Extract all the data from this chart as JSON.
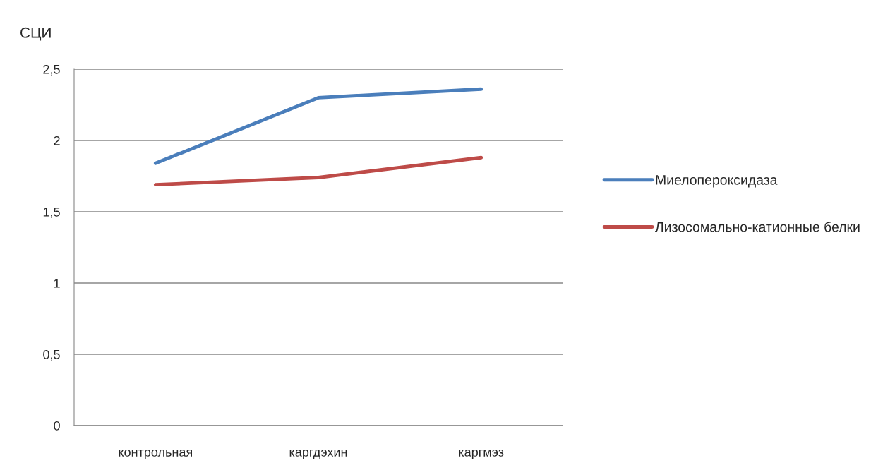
{
  "chart_data": {
    "type": "line",
    "ylabel": "СЦИ",
    "categories": [
      "контрольная",
      "каргдэхин",
      "каргмэз"
    ],
    "series": [
      {
        "name": "Миелопероксидаза",
        "color": "#4a7ebb",
        "values": [
          1.84,
          2.3,
          2.36
        ]
      },
      {
        "name": "Лизосомально-катионные белки",
        "color": "#be4b48",
        "values": [
          1.69,
          1.74,
          1.88
        ]
      }
    ],
    "ylim": [
      0,
      2.5
    ],
    "yticks": [
      0,
      {
        "value": 0.5,
        "label": "0,5"
      },
      1,
      {
        "value": 1.5,
        "label": "1,5"
      },
      2,
      {
        "value": 2.5,
        "label": "2,5"
      }
    ],
    "grid": "y",
    "legend": "right",
    "marker": "none",
    "line_style": "solid"
  }
}
